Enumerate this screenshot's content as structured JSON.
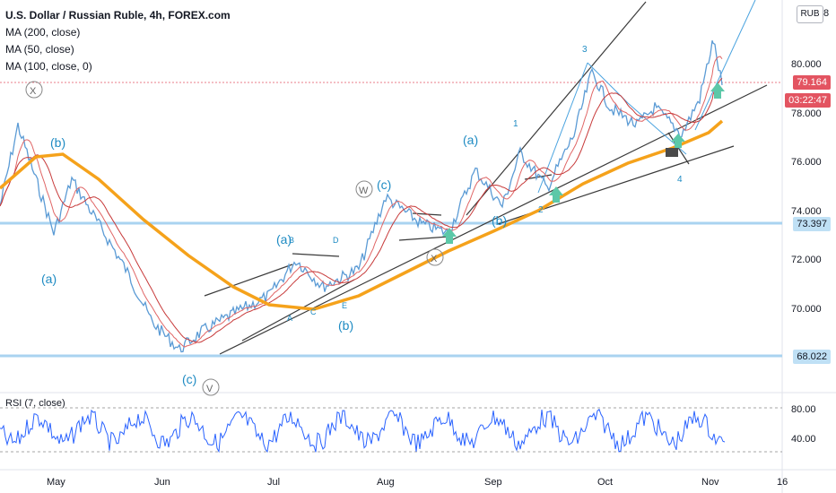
{
  "header": {
    "symbol_line": "U.S. Dollar / Russian Ruble, 4h, FOREX.com",
    "indicators": [
      "MA (200, close)",
      "MA (50, close)",
      "MA (100, close, 0)"
    ]
  },
  "currency_button": "RUB",
  "price_axis": {
    "ticks": [
      "80.000",
      "78.000",
      "76.000",
      "74.000",
      "72.000",
      "70.000"
    ],
    "top_partial": "8",
    "current_price": "79.164",
    "countdown": "03:22:47",
    "level_high": "73.397",
    "level_low": "68.022"
  },
  "time_axis": {
    "ticks": [
      "May",
      "Jun",
      "Jul",
      "Aug",
      "Sep",
      "Oct",
      "Nov",
      "16"
    ]
  },
  "rsi": {
    "title": "RSI (7, close)",
    "ticks": [
      "80.00",
      "40.00"
    ]
  },
  "wave_labels": [
    "X",
    "(b)",
    "(a)",
    "W",
    "(c)",
    "(a)",
    "B",
    "D",
    "A",
    "C",
    "E",
    "(b)",
    "(c)",
    "V",
    "X",
    "(a)",
    "(b)",
    "1",
    "2",
    "3",
    "4"
  ],
  "colors": {
    "ma200": "#f5a21b",
    "ma50": "#e06666",
    "ma100": "#c73a3a",
    "price": "#5b9bd5",
    "wave_label": "#1e8bc3",
    "level_line": "#a9d3f0",
    "current_price_badge": "#e35461",
    "level_badge": "#bfe0f5",
    "rsi_line": "#2962ff"
  }
}
